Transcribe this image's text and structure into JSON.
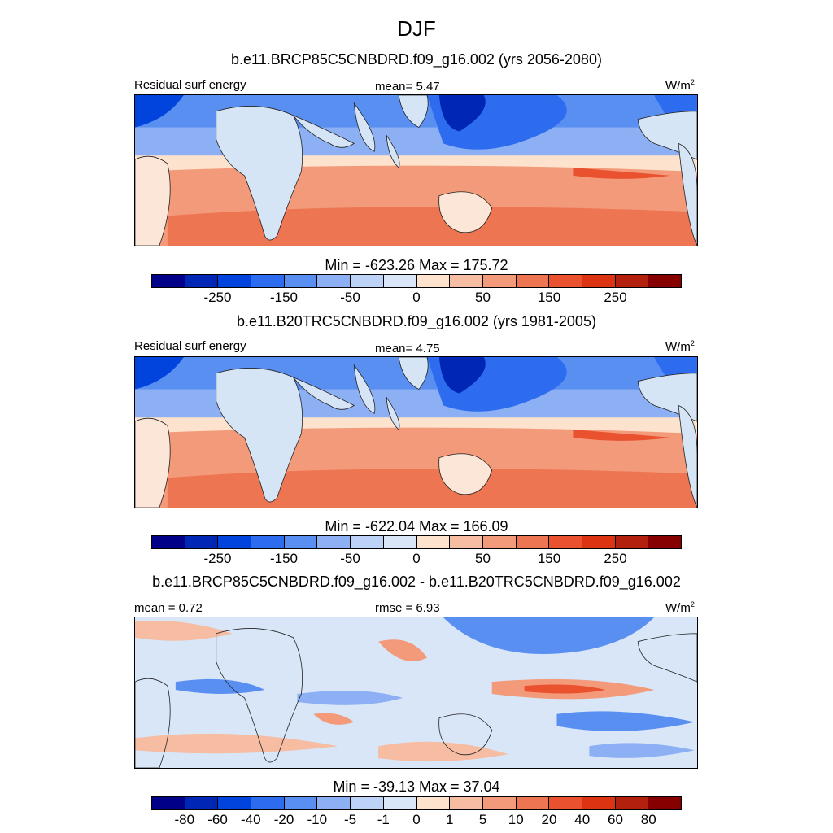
{
  "title": "DJF",
  "colors": {
    "levels": [
      "#000088",
      "#0026b5",
      "#0044dd",
      "#2e6cef",
      "#5a8ff2",
      "#8db0f4",
      "#bcd2f6",
      "#d8e6f7",
      "#fde2cd",
      "#f6bda2",
      "#f29a7a",
      "#ee7552",
      "#e9512f",
      "#dc3412",
      "#b3200e",
      "#860000"
    ],
    "land": "#d6e5f6"
  },
  "panels": [
    {
      "title": "b.e11.BRCP85C5CNBDRD.f09_g16.002 (yrs 2056-2080)",
      "left_label": "Residual surf energy",
      "center_label": "mean=   5.47",
      "units": "W/m",
      "units_sup": "2",
      "minmax": "Min = -623.26 Max = 175.72",
      "tick_labels": [
        "-250",
        "-150",
        "-50",
        "0",
        "50",
        "150",
        "250"
      ]
    },
    {
      "title": "b.e11.B20TRC5CNBDRD.f09_g16.002 (yrs 1981-2005)",
      "left_label": "Residual surf energy",
      "center_label": "mean=   4.75",
      "units": "W/m",
      "units_sup": "2",
      "minmax": "Min = -622.04 Max = 166.09",
      "tick_labels": [
        "-250",
        "-150",
        "-50",
        "0",
        "50",
        "150",
        "250"
      ]
    },
    {
      "title": "b.e11.BRCP85C5CNBDRD.f09_g16.002 - b.e11.B20TRC5CNBDRD.f09_g16.002",
      "left_label": "mean =   0.72",
      "center_label": "rmse =   6.93",
      "units": "W/m",
      "units_sup": "2",
      "minmax": "Min = -39.13 Max =  37.04",
      "tick_labels": [
        "-80",
        "-60",
        "-40",
        "-20",
        "-10",
        "-5",
        "-1",
        "0",
        "1",
        "5",
        "10",
        "20",
        "40",
        "60",
        "80"
      ]
    }
  ],
  "chart_data": [
    {
      "type": "heatmap",
      "title": "b.e11.BRCP85C5CNBDRD.f09_g16.002 (yrs 2056-2080)",
      "variable": "Residual surf energy",
      "units": "W/m2",
      "mean": 5.47,
      "min": -623.26,
      "max": 175.72,
      "contour_levels": [
        -350,
        -300,
        -250,
        -200,
        -150,
        -100,
        -50,
        -25,
        0,
        25,
        50,
        100,
        150,
        200,
        250,
        300,
        350
      ]
    },
    {
      "type": "heatmap",
      "title": "b.e11.B20TRC5CNBDRD.f09_g16.002 (yrs 1981-2005)",
      "variable": "Residual surf energy",
      "units": "W/m2",
      "mean": 4.75,
      "min": -622.04,
      "max": 166.09,
      "contour_levels": [
        -350,
        -300,
        -250,
        -200,
        -150,
        -100,
        -50,
        -25,
        0,
        25,
        50,
        100,
        150,
        200,
        250,
        300,
        350
      ]
    },
    {
      "type": "heatmap",
      "title": "b.e11.BRCP85C5CNBDRD.f09_g16.002 - b.e11.B20TRC5CNBDRD.f09_g16.002",
      "units": "W/m2",
      "mean": 0.72,
      "rmse": 6.93,
      "min": -39.13,
      "max": 37.04,
      "contour_levels": [
        -80,
        -60,
        -40,
        -20,
        -10,
        -5,
        -1,
        0,
        1,
        5,
        10,
        20,
        40,
        60,
        80
      ]
    }
  ]
}
